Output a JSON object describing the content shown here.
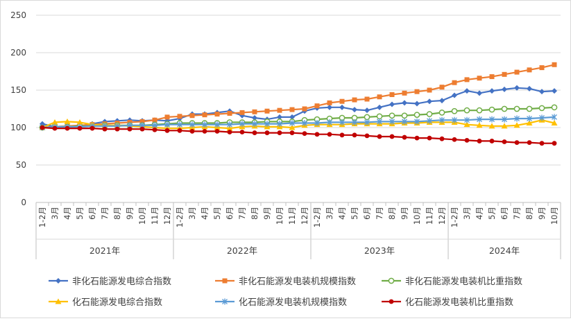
{
  "chart_data": {
    "type": "line",
    "title": "",
    "xlabel": "",
    "ylabel": "",
    "ylim": [
      0,
      250
    ],
    "yticks": [
      0,
      50,
      100,
      150,
      200,
      250
    ],
    "grid": "horizontal",
    "legend_position": "bottom",
    "month_labels": [
      "1-2月",
      "3月",
      "4月",
      "5月",
      "6月",
      "7月",
      "8月",
      "9月",
      "10月",
      "11月",
      "12月"
    ],
    "month_labels_2024": [
      "1-2月",
      "3月",
      "4月",
      "5月",
      "6月",
      "7月",
      "8月",
      "9月",
      "10月"
    ],
    "years": [
      "2021年",
      "2022年",
      "2023年",
      "2024年"
    ],
    "x": [
      "2021-01/02",
      "2021-03",
      "2021-04",
      "2021-05",
      "2021-06",
      "2021-07",
      "2021-08",
      "2021-09",
      "2021-10",
      "2021-11",
      "2021-12",
      "2022-01/02",
      "2022-03",
      "2022-04",
      "2022-05",
      "2022-06",
      "2022-07",
      "2022-08",
      "2022-09",
      "2022-10",
      "2022-11",
      "2022-12",
      "2023-01/02",
      "2023-03",
      "2023-04",
      "2023-05",
      "2023-06",
      "2023-07",
      "2023-08",
      "2023-09",
      "2023-10",
      "2023-11",
      "2023-12",
      "2024-01/02",
      "2024-03",
      "2024-04",
      "2024-05",
      "2024-06",
      "2024-07",
      "2024-08",
      "2024-09",
      "2024-10"
    ],
    "series": [
      {
        "name": "非化石能源发电综合指数",
        "color": "#4472c4",
        "marker": "diamond",
        "values": [
          105,
          101,
          102,
          102,
          105,
          108,
          109,
          110,
          109,
          110,
          109,
          112,
          118,
          118,
          120,
          122,
          116,
          113,
          111,
          114,
          114,
          122,
          126,
          127,
          127,
          124,
          123,
          127,
          131,
          133,
          132,
          135,
          136,
          143,
          149,
          146,
          149,
          151,
          153,
          152,
          148,
          149
        ]
      },
      {
        "name": "非化石能源发电装机规模指数",
        "color": "#ed7d31",
        "marker": "square",
        "values": [
          100,
          101,
          102,
          103,
          104,
          105,
          106,
          107,
          108,
          110,
          114,
          115,
          116,
          117,
          118,
          119,
          120,
          121,
          122,
          123,
          124,
          125,
          129,
          133,
          135,
          137,
          138,
          141,
          144,
          146,
          148,
          150,
          154,
          160,
          164,
          166,
          168,
          171,
          174,
          177,
          180,
          184
        ]
      },
      {
        "name": "非化石能源发电装机比重指数",
        "color": "#70ad47",
        "marker": "circle-open",
        "values": [
          100,
          101,
          101,
          102,
          102,
          103,
          103,
          103,
          103,
          104,
          105,
          106,
          106,
          106,
          106,
          107,
          107,
          107,
          108,
          108,
          108,
          110,
          111,
          112,
          113,
          113,
          114,
          115,
          116,
          116,
          117,
          118,
          120,
          122,
          123,
          123,
          124,
          125,
          125,
          125,
          126,
          127
        ]
      },
      {
        "name": "化石能源发电综合指数",
        "color": "#ffc000",
        "marker": "triangle",
        "values": [
          100,
          107,
          108,
          107,
          104,
          103,
          103,
          102,
          101,
          100,
          99,
          99,
          100,
          101,
          100,
          99,
          101,
          102,
          101,
          101,
          100,
          103,
          104,
          104,
          104,
          105,
          105,
          105,
          105,
          106,
          106,
          107,
          107,
          107,
          104,
          103,
          102,
          102,
          103,
          106,
          110,
          106
        ]
      },
      {
        "name": "化石能源发电装机规模指数",
        "color": "#5b9bd5",
        "marker": "star",
        "values": [
          100,
          101,
          101,
          101,
          102,
          102,
          102,
          103,
          103,
          103,
          104,
          104,
          104,
          104,
          104,
          104,
          105,
          105,
          105,
          105,
          106,
          106,
          106,
          107,
          107,
          107,
          107,
          108,
          108,
          108,
          108,
          109,
          110,
          110,
          110,
          111,
          111,
          111,
          112,
          112,
          113,
          114
        ]
      },
      {
        "name": "化石能源发电装机比重指数",
        "color": "#c00000",
        "marker": "dot",
        "values": [
          100,
          99,
          99,
          99,
          99,
          98,
          98,
          98,
          98,
          97,
          96,
          96,
          95,
          95,
          95,
          94,
          94,
          93,
          93,
          93,
          93,
          92,
          91,
          91,
          90,
          90,
          89,
          88,
          88,
          87,
          86,
          86,
          85,
          84,
          83,
          82,
          82,
          81,
          80,
          80,
          79,
          79
        ]
      }
    ]
  }
}
